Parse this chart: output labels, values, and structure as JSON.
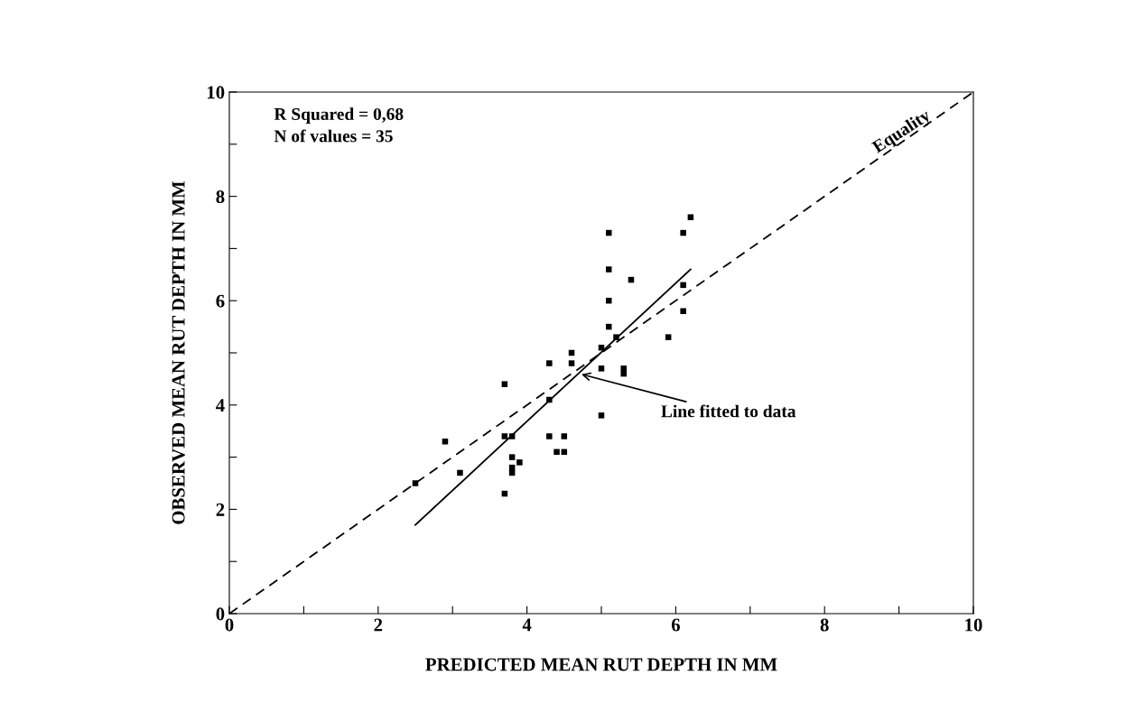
{
  "chart_data": {
    "type": "scatter",
    "xlabel": "PREDICTED MEAN RUT DEPTH IN MM",
    "ylabel": "OBSERVED MEAN RUT DEPTH IN MM",
    "xlim": [
      0,
      10
    ],
    "ylim": [
      0,
      10
    ],
    "xticks": [
      0,
      {
        "value": 1,
        "label": null
      },
      2,
      {
        "value": 3,
        "label": null
      },
      4,
      {
        "value": 5,
        "label": null
      },
      6,
      {
        "value": 7,
        "label": null
      },
      8,
      {
        "value": 9,
        "label": null
      },
      10
    ],
    "yticks": [
      0,
      {
        "value": 1,
        "label": null
      },
      2,
      {
        "value": 3,
        "label": null
      },
      4,
      {
        "value": 5,
        "label": null
      },
      6,
      {
        "value": 7,
        "label": null
      },
      8,
      {
        "value": 9,
        "label": null
      },
      10
    ],
    "grid": false,
    "legend": false,
    "series": [
      {
        "color": "#000000",
        "marker": "square",
        "x": [
          2.5,
          2.9,
          3.1,
          3.7,
          3.7,
          3.7,
          3.8,
          3.8,
          3.8,
          3.8,
          3.9,
          4.3,
          4.3,
          4.3,
          4.4,
          4.5,
          4.5,
          4.6,
          4.6,
          5.0,
          5.0,
          5.0,
          5.1,
          5.1,
          5.1,
          5.1,
          5.2,
          5.3,
          5.3,
          5.4,
          5.9,
          6.1,
          6.1,
          6.1,
          6.2
        ],
        "values": [
          2.5,
          3.3,
          2.7,
          4.4,
          3.4,
          2.3,
          3.4,
          3.0,
          2.8,
          2.7,
          2.9,
          4.8,
          4.1,
          3.4,
          3.1,
          3.4,
          3.1,
          5.0,
          4.8,
          5.1,
          4.7,
          3.8,
          7.3,
          6.6,
          6.0,
          5.5,
          5.3,
          4.7,
          4.6,
          6.4,
          5.3,
          7.3,
          6.3,
          5.8,
          7.6
        ]
      },
      {
        "type": "line",
        "color": "#000000",
        "line_style": "solid",
        "x": [
          2.5,
          6.2
        ],
        "values": [
          1.7,
          6.6
        ]
      },
      {
        "type": "line",
        "color": "#000000",
        "line_style": "dashed",
        "x": [
          0,
          10
        ],
        "values": [
          0,
          10
        ]
      }
    ],
    "annotations": [
      "R Squared = 0,68\nN of values = 35",
      {
        "text": "Line fitted to data",
        "x": 4.7,
        "y": 4.6
      },
      {
        "text": "Equality",
        "x": 9.1,
        "y": 9.1
      }
    ]
  }
}
